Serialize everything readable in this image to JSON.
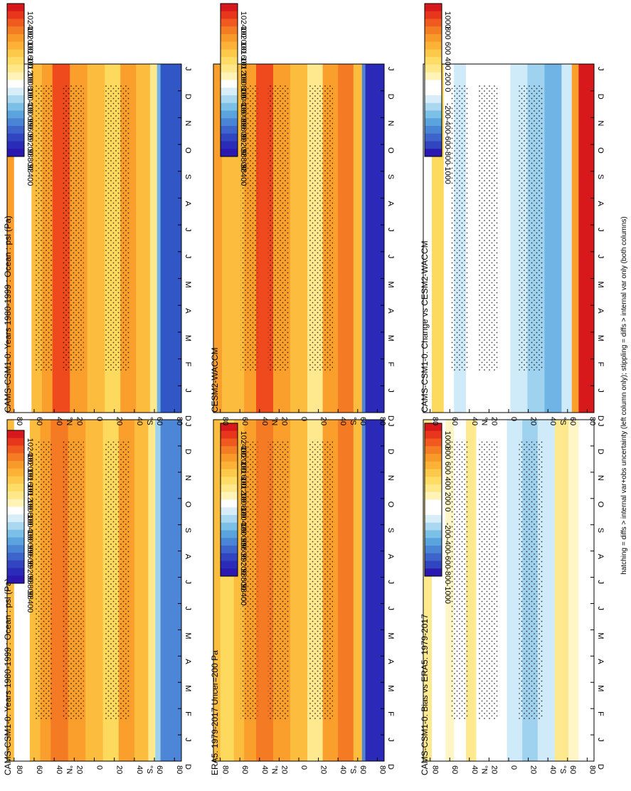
{
  "figure": {
    "footer_note": "hatching = diffs > internal var+obs uncertainty (left column only); stippling = diffs > internal var only (both columns)"
  },
  "chart_data": [
    {
      "id": "tl",
      "type": "heatmap",
      "title": "CAMS-CSM1-0: Years 1980-1999 : Ocean : psl (Pa)",
      "x_ticks": [
        "D",
        "J",
        "F",
        "M",
        "A",
        "M",
        "J",
        "J",
        "A",
        "S",
        "O",
        "N",
        "D",
        "J"
      ],
      "y_ticks": [
        "80",
        "60",
        "40",
        "20",
        "0",
        "20",
        "40",
        "60",
        "80"
      ],
      "y_unit_labels": {
        "north": "°N",
        "south": "°S"
      },
      "field": "absolute"
    },
    {
      "id": "tr",
      "type": "heatmap",
      "title": "CAMS-CSM1-0: Years 1980-1999 : Ocean : psl (Pa)",
      "x_ticks": [
        "D",
        "J",
        "F",
        "M",
        "A",
        "M",
        "J",
        "J",
        "A",
        "S",
        "O",
        "N",
        "D",
        "J"
      ],
      "y_ticks": [
        "80",
        "60",
        "40",
        "20",
        "0",
        "20",
        "40",
        "60",
        "80"
      ],
      "y_unit_labels": {
        "north": "°N",
        "south": "°S"
      },
      "field": "absolute"
    },
    {
      "id": "ml",
      "type": "heatmap",
      "title": "ERA5: 1979-2017 Uncer=200 Pa",
      "x_ticks": [
        "D",
        "J",
        "F",
        "M",
        "A",
        "M",
        "J",
        "J",
        "A",
        "S",
        "O",
        "N",
        "D",
        "J"
      ],
      "y_ticks": [
        "80",
        "60",
        "40",
        "20",
        "0",
        "20",
        "40",
        "60",
        "80"
      ],
      "y_unit_labels": {
        "north": "°N",
        "south": "°S"
      },
      "field": "absolute"
    },
    {
      "id": "mr",
      "type": "heatmap",
      "title": "CESM2-WACCM",
      "x_ticks": [
        "D",
        "J",
        "F",
        "M",
        "A",
        "M",
        "J",
        "J",
        "A",
        "S",
        "O",
        "N",
        "D",
        "J"
      ],
      "y_ticks": [
        "80",
        "60",
        "40",
        "20",
        "0",
        "20",
        "40",
        "60",
        "80"
      ],
      "y_unit_labels": {
        "north": "°N",
        "south": "°S"
      },
      "field": "absolute"
    },
    {
      "id": "bl",
      "type": "heatmap",
      "title": "CAMS-CSM1-0: Bias vs ERA5: 1979-2017",
      "x_ticks": [
        "D",
        "J",
        "F",
        "M",
        "A",
        "M",
        "J",
        "J",
        "A",
        "S",
        "O",
        "N",
        "D",
        "J"
      ],
      "y_ticks": [
        "80",
        "60",
        "40",
        "20",
        "0",
        "20",
        "40",
        "60",
        "80"
      ],
      "y_unit_labels": {
        "north": "°N",
        "south": "°S"
      },
      "field": "difference"
    },
    {
      "id": "br",
      "type": "heatmap",
      "title": "CAMS-CSM1-0: Change vs CESM2-WACCM",
      "x_ticks": [
        "D",
        "J",
        "F",
        "M",
        "A",
        "M",
        "J",
        "J",
        "A",
        "S",
        "O",
        "N",
        "D",
        "J"
      ],
      "y_ticks": [
        "80",
        "60",
        "40",
        "20",
        "0",
        "20",
        "40",
        "60",
        "80"
      ],
      "y_unit_labels": {
        "north": "°N",
        "south": "°S"
      },
      "field": "difference"
    }
  ],
  "colorbars": {
    "absolute": {
      "labels": [
        "102400",
        "102000",
        "101600",
        "101200",
        "100800",
        "100400",
        "100000",
        "99600",
        "99200",
        "98800",
        "98400"
      ],
      "colors": [
        "#d7191c",
        "#e8361d",
        "#f05a1f",
        "#f47c23",
        "#f89a2a",
        "#fbb236",
        "#fdc94a",
        "#fedc66",
        "#fee88a",
        "#fff3b8",
        "#ffffff",
        "#d7eef9",
        "#a9d8f0",
        "#7cc0e7",
        "#5aa3dd",
        "#4a84d4",
        "#3d64ca",
        "#3145c0",
        "#2a2bb8",
        "#2a18b0"
      ]
    },
    "difference": {
      "labels": [
        "1000",
        "800",
        "600",
        "400",
        "200",
        "0",
        "-200",
        "-400",
        "-600",
        "-800",
        "-1000"
      ],
      "colors": [
        "#d7191c",
        "#e8361d",
        "#f05a1f",
        "#f47c23",
        "#f89a2a",
        "#fbb236",
        "#fdc94a",
        "#fedc66",
        "#fee88a",
        "#fff3b8",
        "#ffffff",
        "#ffffff",
        "#d7eef9",
        "#a9d8f0",
        "#7cc0e7",
        "#5aa3dd",
        "#4a84d4",
        "#3d64ca",
        "#3145c0",
        "#2a18b0"
      ]
    }
  }
}
